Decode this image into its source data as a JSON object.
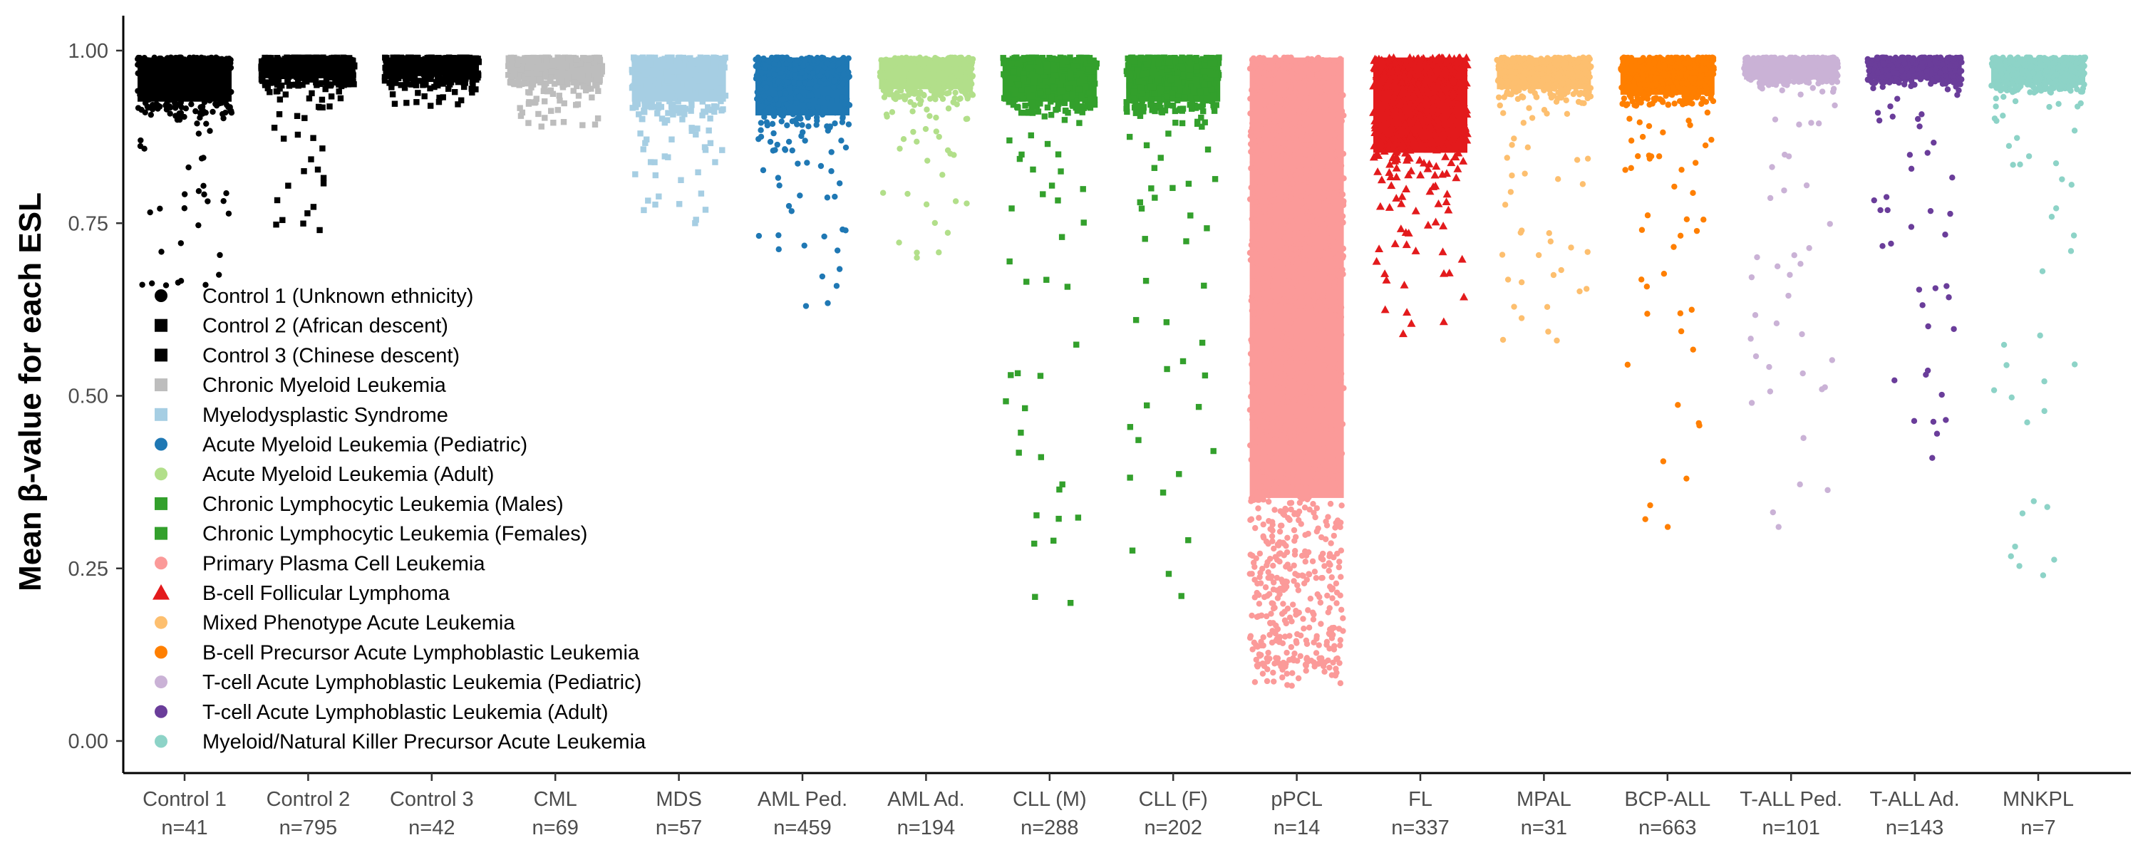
{
  "chart_data": {
    "type": "scatter",
    "ylabel": "Mean β-value for each ESL",
    "ylim": [
      0.0,
      1.0
    ],
    "yticks": [
      0.0,
      0.25,
      0.5,
      0.75,
      1.0
    ],
    "ytick_labels": [
      "0.00",
      "0.25",
      "0.50",
      "0.75",
      "1.00"
    ],
    "grid": false,
    "legend_position": "bottom-left",
    "groups": [
      {
        "label": "Control 1",
        "n": "n=41",
        "legend": "Control 1 (Unknown ethnicity)",
        "color": "#000000",
        "shape": "circle",
        "median": 0.95,
        "dense_low": 0.91,
        "min": 0.66
      },
      {
        "label": "Control 2",
        "n": "n=795",
        "legend": "Control 2 (African descent)",
        "color": "#000000",
        "shape": "square",
        "median": 0.975,
        "dense_low": 0.95,
        "min": 0.74
      },
      {
        "label": "Control 3",
        "n": "n=42",
        "legend": "Control 3 (Chinese descent)",
        "color": "#000000",
        "shape": "square",
        "median": 0.975,
        "dense_low": 0.955,
        "min": 0.92
      },
      {
        "label": "CML",
        "n": "n=69",
        "legend": "Chronic Myeloid Leukemia",
        "color": "#bdbdbd",
        "shape": "square",
        "median": 0.97,
        "dense_low": 0.95,
        "min": 0.89
      },
      {
        "label": "MDS",
        "n": "n=57",
        "legend": "Myelodysplastic Syndrome",
        "color": "#a6cee3",
        "shape": "square",
        "median": 0.95,
        "dense_low": 0.91,
        "min": 0.75
      },
      {
        "label": "AML Ped.",
        "n": "n=459",
        "legend": "Acute Myeloid Leukemia (Pediatric)",
        "color": "#1f78b4",
        "shape": "circle",
        "median": 0.93,
        "dense_low": 0.89,
        "min": 0.63
      },
      {
        "label": "AML Ad.",
        "n": "n=194",
        "legend": "Acute Myeloid Leukemia (Adult)",
        "color": "#b2df8a",
        "shape": "circle",
        "median": 0.965,
        "dense_low": 0.93,
        "min": 0.7
      },
      {
        "label": "CLL (M)",
        "n": "n=288",
        "legend": "Chronic Lymphocytic Leukemia (Males)",
        "color": "#33a02c",
        "shape": "square",
        "median": 0.95,
        "dense_low": 0.91,
        "min": 0.2
      },
      {
        "label": "CLL (F)",
        "n": "n=202",
        "legend": "Chronic Lymphocytic Leukemia (Females)",
        "color": "#33a02c",
        "shape": "square",
        "median": 0.95,
        "dense_low": 0.91,
        "min": 0.21
      },
      {
        "label": "pPCL",
        "n": "n=14",
        "legend": "Primary Plasma Cell Leukemia",
        "color": "#fb9a99",
        "shape": "circle",
        "median": 0.7,
        "dense_low": 0.12,
        "min": 0.08
      },
      {
        "label": "FL",
        "n": "n=337",
        "legend": "B-cell Follicular Lymphoma",
        "color": "#e31a1c",
        "shape": "triangle",
        "median": 0.9,
        "dense_low": 0.82,
        "min": 0.59
      },
      {
        "label": "MPAL",
        "n": "n=31",
        "legend": "Mixed Phenotype Acute Leukemia",
        "color": "#fdbf6f",
        "shape": "circle",
        "median": 0.965,
        "dense_low": 0.93,
        "min": 0.58
      },
      {
        "label": "BCP-ALL",
        "n": "n=663",
        "legend": "B-cell Precursor Acute Lymphoblastic Leukemia",
        "color": "#ff7f00",
        "shape": "circle",
        "median": 0.96,
        "dense_low": 0.92,
        "min": 0.31
      },
      {
        "label": "T-ALL Ped.",
        "n": "n=101",
        "legend": "T-cell Acute Lymphoblastic Leukemia (Pediatric)",
        "color": "#cab2d6",
        "shape": "circle",
        "median": 0.97,
        "dense_low": 0.95,
        "min": 0.31
      },
      {
        "label": "T-ALL Ad.",
        "n": "n=143",
        "legend": "T-cell Acute Lymphoblastic Leukemia (Adult)",
        "color": "#6a3d9a",
        "shape": "circle",
        "median": 0.97,
        "dense_low": 0.95,
        "min": 0.41
      },
      {
        "label": "MNKPL",
        "n": "n=7",
        "legend": "Myeloid/Natural Killer Precursor Acute Leukemia",
        "color": "#8dd3c7",
        "shape": "circle",
        "median": 0.965,
        "dense_low": 0.94,
        "min": 0.24
      }
    ]
  }
}
